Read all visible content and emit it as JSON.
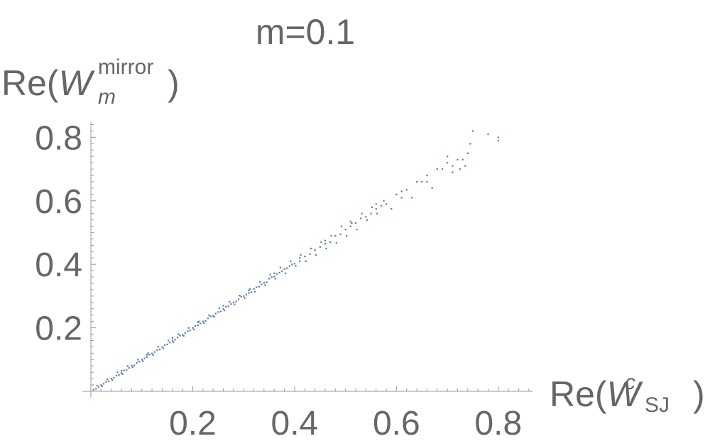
{
  "chart_data": {
    "type": "scatter",
    "title": "m=0.1",
    "ylabel": {
      "prefix": "Re(",
      "main": "W",
      "sup": "mirror",
      "sub": "m",
      "suffix": ")"
    },
    "xlabel": {
      "prefix": "Re(",
      "main": "W",
      "sup": "c",
      "sub": "SJ",
      "suffix": ")"
    },
    "xlim": [
      0.0,
      0.87
    ],
    "ylim": [
      0.0,
      0.85
    ],
    "xticks": [
      "0.2",
      "0.4",
      "0.6",
      "0.8"
    ],
    "yticks": [
      "0.2",
      "0.4",
      "0.6",
      "0.8"
    ],
    "grid": false,
    "marker_color": "#5b7bb0",
    "series": [
      {
        "points": [
          [
            0.005,
            0.005
          ],
          [
            0.01,
            0.008
          ],
          [
            0.015,
            0.014
          ],
          [
            0.02,
            0.02
          ],
          [
            0.025,
            0.024
          ],
          [
            0.03,
            0.03
          ],
          [
            0.035,
            0.032
          ],
          [
            0.04,
            0.04
          ],
          [
            0.045,
            0.043
          ],
          [
            0.05,
            0.05
          ],
          [
            0.055,
            0.052
          ],
          [
            0.06,
            0.058
          ],
          [
            0.065,
            0.066
          ],
          [
            0.07,
            0.068
          ],
          [
            0.075,
            0.074
          ],
          [
            0.08,
            0.081
          ],
          [
            0.085,
            0.082
          ],
          [
            0.09,
            0.09
          ],
          [
            0.095,
            0.094
          ],
          [
            0.1,
            0.1
          ],
          [
            0.105,
            0.104
          ],
          [
            0.11,
            0.108
          ],
          [
            0.115,
            0.116
          ],
          [
            0.12,
            0.119
          ],
          [
            0.125,
            0.124
          ],
          [
            0.13,
            0.13
          ],
          [
            0.135,
            0.132
          ],
          [
            0.14,
            0.14
          ],
          [
            0.145,
            0.146
          ],
          [
            0.15,
            0.148
          ],
          [
            0.155,
            0.154
          ],
          [
            0.16,
            0.16
          ],
          [
            0.165,
            0.163
          ],
          [
            0.17,
            0.17
          ],
          [
            0.175,
            0.176
          ],
          [
            0.18,
            0.178
          ],
          [
            0.185,
            0.184
          ],
          [
            0.19,
            0.19
          ],
          [
            0.195,
            0.192
          ],
          [
            0.2,
            0.2
          ],
          [
            0.205,
            0.206
          ],
          [
            0.21,
            0.208
          ],
          [
            0.215,
            0.214
          ],
          [
            0.22,
            0.22
          ],
          [
            0.225,
            0.222
          ],
          [
            0.23,
            0.23
          ],
          [
            0.235,
            0.236
          ],
          [
            0.24,
            0.238
          ],
          [
            0.245,
            0.245
          ],
          [
            0.25,
            0.25
          ],
          [
            0.255,
            0.252
          ],
          [
            0.26,
            0.26
          ],
          [
            0.265,
            0.267
          ],
          [
            0.27,
            0.268
          ],
          [
            0.275,
            0.275
          ],
          [
            0.28,
            0.28
          ],
          [
            0.285,
            0.283
          ],
          [
            0.29,
            0.29
          ],
          [
            0.295,
            0.298
          ],
          [
            0.3,
            0.3
          ],
          [
            0.305,
            0.305
          ],
          [
            0.31,
            0.31
          ],
          [
            0.315,
            0.313
          ],
          [
            0.32,
            0.322
          ],
          [
            0.325,
            0.328
          ],
          [
            0.33,
            0.33
          ],
          [
            0.335,
            0.337
          ],
          [
            0.34,
            0.342
          ],
          [
            0.345,
            0.344
          ],
          [
            0.35,
            0.355
          ],
          [
            0.355,
            0.36
          ],
          [
            0.36,
            0.362
          ],
          [
            0.365,
            0.37
          ],
          [
            0.37,
            0.374
          ],
          [
            0.375,
            0.378
          ],
          [
            0.38,
            0.385
          ],
          [
            0.385,
            0.388
          ],
          [
            0.39,
            0.395
          ],
          [
            0.395,
            0.4
          ],
          [
            0.4,
            0.402
          ],
          [
            0.41,
            0.41
          ],
          [
            0.42,
            0.425
          ],
          [
            0.43,
            0.432
          ],
          [
            0.44,
            0.445
          ],
          [
            0.45,
            0.455
          ],
          [
            0.46,
            0.465
          ],
          [
            0.47,
            0.47
          ],
          [
            0.48,
            0.49
          ],
          [
            0.49,
            0.495
          ],
          [
            0.5,
            0.51
          ],
          [
            0.51,
            0.52
          ],
          [
            0.52,
            0.53
          ],
          [
            0.53,
            0.545
          ],
          [
            0.54,
            0.55
          ],
          [
            0.55,
            0.56
          ],
          [
            0.56,
            0.575
          ],
          [
            0.57,
            0.585
          ],
          [
            0.58,
            0.59
          ],
          [
            0.6,
            0.62
          ],
          [
            0.62,
            0.635
          ],
          [
            0.64,
            0.66
          ],
          [
            0.66,
            0.68
          ],
          [
            0.68,
            0.7
          ],
          [
            0.7,
            0.72
          ],
          [
            0.72,
            0.73
          ],
          [
            0.74,
            0.75
          ],
          [
            0.75,
            0.82
          ],
          [
            0.8,
            0.79
          ],
          [
            0.012,
            0.018
          ],
          [
            0.022,
            0.016
          ],
          [
            0.032,
            0.038
          ],
          [
            0.042,
            0.036
          ],
          [
            0.052,
            0.06
          ],
          [
            0.062,
            0.054
          ],
          [
            0.072,
            0.08
          ],
          [
            0.082,
            0.076
          ],
          [
            0.092,
            0.1
          ],
          [
            0.102,
            0.095
          ],
          [
            0.112,
            0.12
          ],
          [
            0.122,
            0.115
          ],
          [
            0.132,
            0.14
          ],
          [
            0.142,
            0.135
          ],
          [
            0.152,
            0.16
          ],
          [
            0.162,
            0.155
          ],
          [
            0.172,
            0.18
          ],
          [
            0.182,
            0.175
          ],
          [
            0.192,
            0.2
          ],
          [
            0.202,
            0.195
          ],
          [
            0.212,
            0.22
          ],
          [
            0.222,
            0.215
          ],
          [
            0.232,
            0.24
          ],
          [
            0.242,
            0.235
          ],
          [
            0.252,
            0.262
          ],
          [
            0.262,
            0.255
          ],
          [
            0.272,
            0.282
          ],
          [
            0.282,
            0.274
          ],
          [
            0.292,
            0.302
          ],
          [
            0.302,
            0.294
          ],
          [
            0.312,
            0.322
          ],
          [
            0.322,
            0.314
          ],
          [
            0.332,
            0.345
          ],
          [
            0.342,
            0.335
          ],
          [
            0.352,
            0.368
          ],
          [
            0.362,
            0.355
          ],
          [
            0.372,
            0.39
          ],
          [
            0.382,
            0.372
          ],
          [
            0.392,
            0.41
          ],
          [
            0.402,
            0.395
          ],
          [
            0.412,
            0.43
          ],
          [
            0.422,
            0.41
          ],
          [
            0.432,
            0.45
          ],
          [
            0.442,
            0.43
          ],
          [
            0.452,
            0.47
          ],
          [
            0.462,
            0.45
          ],
          [
            0.472,
            0.49
          ],
          [
            0.482,
            0.468
          ],
          [
            0.492,
            0.52
          ],
          [
            0.502,
            0.49
          ],
          [
            0.512,
            0.53
          ],
          [
            0.522,
            0.51
          ],
          [
            0.532,
            0.56
          ],
          [
            0.542,
            0.54
          ],
          [
            0.552,
            0.58
          ],
          [
            0.562,
            0.56
          ],
          [
            0.575,
            0.6
          ],
          [
            0.59,
            0.575
          ],
          [
            0.61,
            0.63
          ],
          [
            0.63,
            0.61
          ],
          [
            0.65,
            0.66
          ],
          [
            0.67,
            0.64
          ],
          [
            0.69,
            0.7
          ],
          [
            0.71,
            0.69
          ],
          [
            0.725,
            0.7
          ],
          [
            0.735,
            0.71
          ],
          [
            0.745,
            0.78
          ],
          [
            0.8,
            0.8
          ],
          [
            0.78,
            0.81
          ],
          [
            0.06,
            0.065
          ],
          [
            0.11,
            0.115
          ],
          [
            0.16,
            0.168
          ],
          [
            0.21,
            0.218
          ],
          [
            0.26,
            0.27
          ],
          [
            0.31,
            0.318
          ],
          [
            0.36,
            0.372
          ],
          [
            0.41,
            0.42
          ],
          [
            0.46,
            0.475
          ],
          [
            0.51,
            0.535
          ],
          [
            0.56,
            0.59
          ],
          [
            0.61,
            0.61
          ],
          [
            0.66,
            0.66
          ],
          [
            0.71,
            0.71
          ],
          [
            0.73,
            0.73
          ],
          [
            0.7,
            0.74
          ]
        ]
      }
    ]
  }
}
